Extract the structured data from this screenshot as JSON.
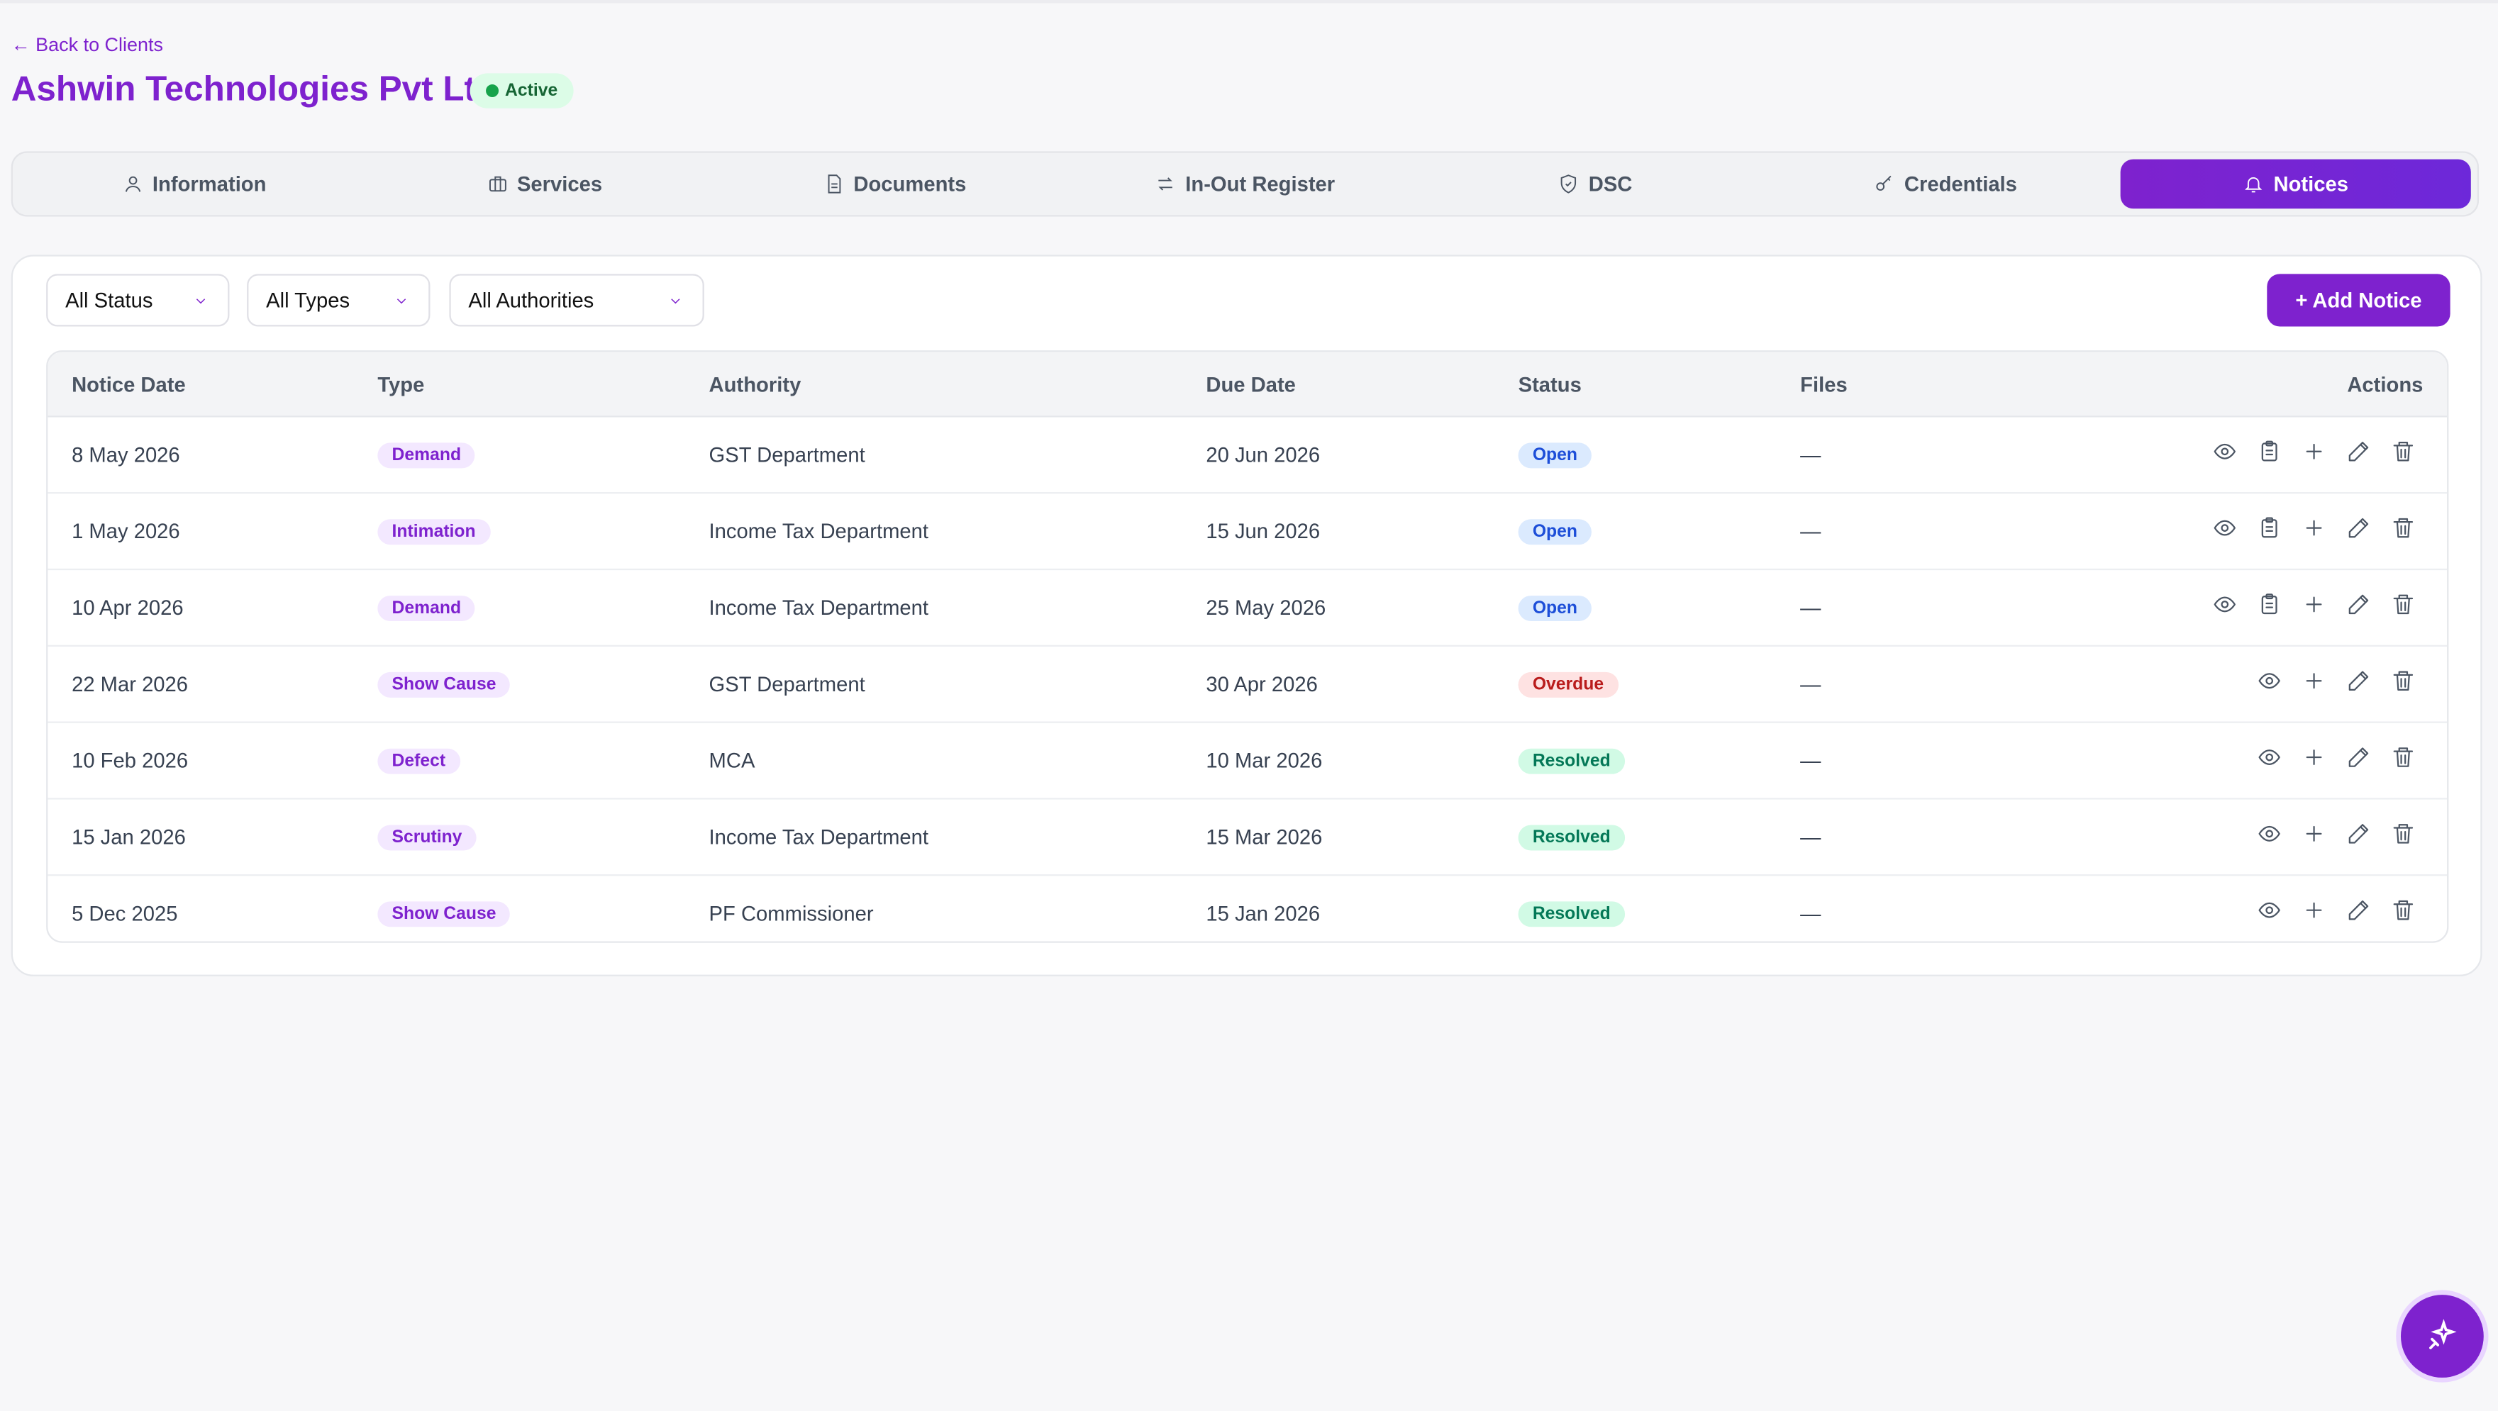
{
  "header": {
    "back": "← Back to Clients",
    "title": "Ashwin Technologies Pvt Ltd",
    "status": "Active"
  },
  "tabs": [
    "Information",
    "Services",
    "Documents",
    "In-Out Register",
    "DSC",
    "Credentials",
    "Notices"
  ],
  "filters": [
    "All Status",
    "All Types",
    "All Authorities"
  ],
  "add_button": "+ Add Notice",
  "table": {
    "columns": [
      "Notice Date",
      "Type",
      "Authority",
      "Due Date",
      "Status",
      "Files",
      "Actions"
    ],
    "rows": [
      [
        "8 May 2026",
        "Demand",
        "GST Department",
        "20 Jun 2026",
        "Open",
        "—"
      ],
      [
        "1 May 2026",
        "Intimation",
        "Income Tax Department",
        "15 Jun 2026",
        "Open",
        "—"
      ],
      [
        "10 Apr 2026",
        "Demand",
        "Income Tax Department",
        "25 May 2026",
        "Open",
        "—"
      ],
      [
        "22 Mar 2026",
        "Show Cause",
        "GST Department",
        "30 Apr 2026",
        "Overdue",
        "—"
      ],
      [
        "10 Feb 2026",
        "Defect",
        "MCA",
        "10 Mar 2026",
        "Resolved",
        "—"
      ],
      [
        "15 Jan 2026",
        "Scrutiny",
        "Income Tax Department",
        "15 Mar 2026",
        "Resolved",
        "—"
      ],
      [
        "5 Dec 2025",
        "Show Cause",
        "PF Commissioner",
        "15 Jan 2026",
        "Resolved",
        "—"
      ]
    ]
  }
}
